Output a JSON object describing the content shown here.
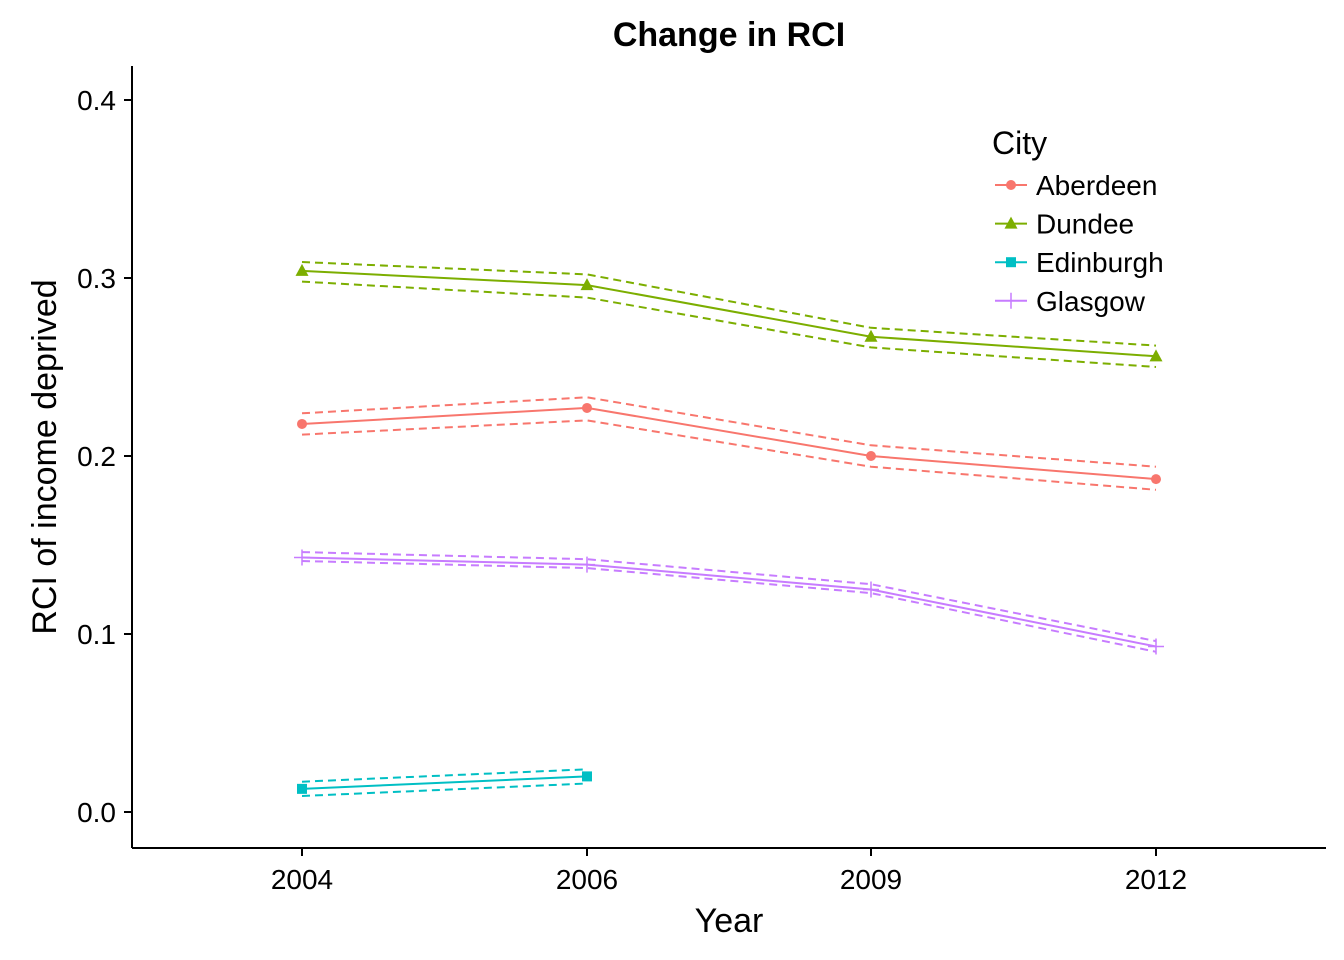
{
  "chart_data": {
    "type": "line",
    "title": "Change in RCI",
    "xlabel": "Year",
    "ylabel": "RCI of income deprived",
    "x": [
      "2004",
      "2006",
      "2009",
      "2012"
    ],
    "y_ticks": [
      "0.0",
      "0.1",
      "0.2",
      "0.3",
      "0.4"
    ],
    "ylim": [
      -0.02,
      0.42
    ],
    "grid": false,
    "legend": {
      "title": "City",
      "position": "top-right"
    },
    "series": [
      {
        "name": "Aberdeen",
        "color": "#F8766D",
        "marker": "circle",
        "values": [
          0.218,
          0.227,
          0.2,
          0.187
        ],
        "lower": [
          0.212,
          0.22,
          0.194,
          0.181
        ],
        "upper": [
          0.224,
          0.233,
          0.206,
          0.194
        ]
      },
      {
        "name": "Dundee",
        "color": "#7CAE00",
        "marker": "triangle",
        "values": [
          0.304,
          0.296,
          0.267,
          0.256
        ],
        "lower": [
          0.298,
          0.289,
          0.261,
          0.25
        ],
        "upper": [
          0.309,
          0.302,
          0.272,
          0.262
        ]
      },
      {
        "name": "Edinburgh",
        "color": "#00BFC4",
        "marker": "square",
        "values": [
          0.013,
          0.02,
          null,
          null
        ],
        "lower": [
          0.009,
          0.016,
          null,
          null
        ],
        "upper": [
          0.017,
          0.024,
          null,
          null
        ]
      },
      {
        "name": "Glasgow",
        "color": "#C77CFF",
        "marker": "plus",
        "values": [
          0.143,
          0.139,
          0.125,
          0.093
        ],
        "lower": [
          0.141,
          0.137,
          0.123,
          0.09
        ],
        "upper": [
          0.146,
          0.142,
          0.128,
          0.096
        ]
      }
    ]
  }
}
